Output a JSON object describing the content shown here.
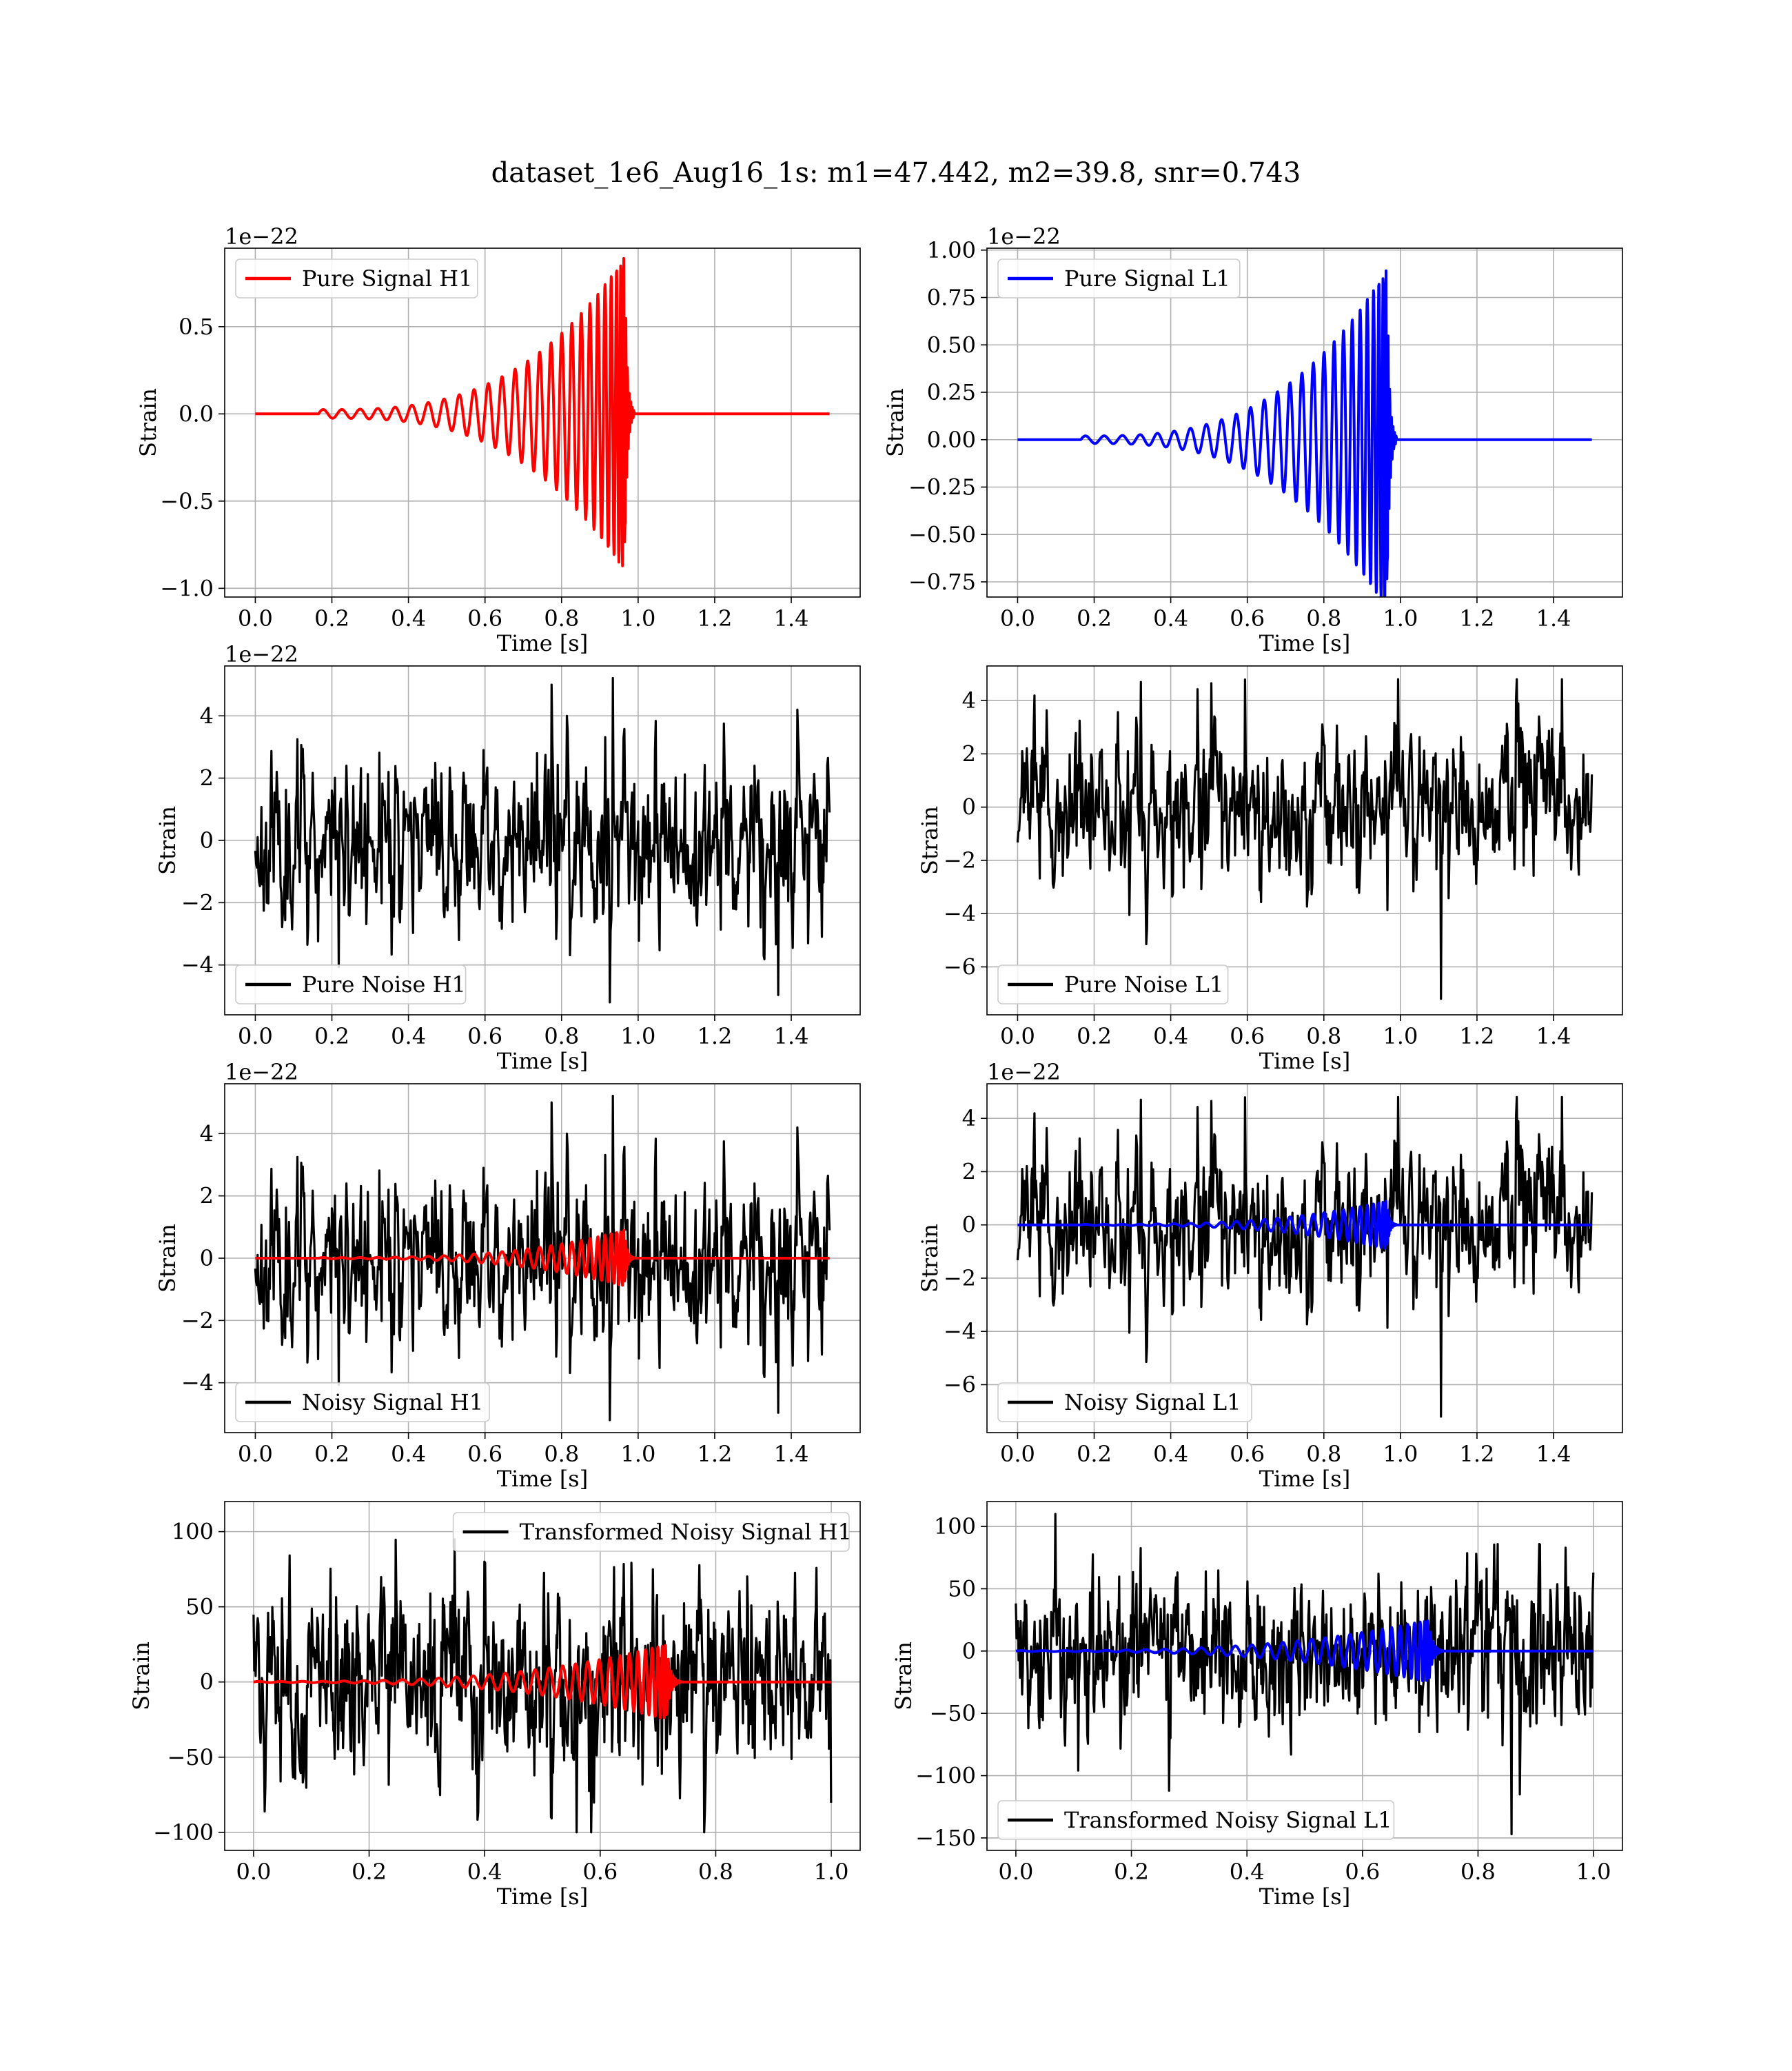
{
  "figure": {
    "suptitle": "dataset_1e6_Aug16_1s: m1=47.442, m2=39.8, snr=0.743"
  },
  "chart_data": [
    {
      "id": "pure-signal-h1",
      "type": "line",
      "xlabel": "Time [s]",
      "ylabel": "Strain",
      "offset_text": "1e−22",
      "xlim": [
        -0.08,
        1.58
      ],
      "ylim": [
        -1.05,
        0.95
      ],
      "xticks": [
        0.0,
        0.2,
        0.4,
        0.6,
        0.8,
        1.0,
        1.2,
        1.4
      ],
      "xtick_labels": [
        "0.0",
        "0.2",
        "0.4",
        "0.6",
        "0.8",
        "1.0",
        "1.2",
        "1.4"
      ],
      "yticks": [
        -1.0,
        -0.5,
        0.0,
        0.5
      ],
      "ytick_labels": [
        "−1.0",
        "−0.5",
        "0.0",
        "0.5"
      ],
      "grid": true,
      "legend": {
        "position": "upper-left",
        "entries": [
          {
            "label": "Pure Signal H1",
            "color": "#ff0000"
          }
        ]
      },
      "series": [
        {
          "name": "Pure Signal H1",
          "color": "#ff0000",
          "kind": "chirp",
          "x_range": [
            0.0,
            1.5
          ],
          "t_start": 0.165,
          "t_merge": 0.965,
          "t_end": 0.99,
          "amp_start": 0.025,
          "amp_peak": 0.9,
          "cycles": 26,
          "dt": 0.0008,
          "seed": 3
        }
      ]
    },
    {
      "id": "pure-signal-l1",
      "type": "line",
      "xlabel": "Time [s]",
      "ylabel": "Strain",
      "offset_text": "1e−22",
      "xlim": [
        -0.08,
        1.58
      ],
      "ylim": [
        -0.83,
        1.01
      ],
      "xticks": [
        0.0,
        0.2,
        0.4,
        0.6,
        0.8,
        1.0,
        1.2,
        1.4
      ],
      "xtick_labels": [
        "0.0",
        "0.2",
        "0.4",
        "0.6",
        "0.8",
        "1.0",
        "1.2",
        "1.4"
      ],
      "yticks": [
        -0.75,
        -0.5,
        -0.25,
        0.0,
        0.25,
        0.5,
        0.75,
        1.0
      ],
      "ytick_labels": [
        "−0.75",
        "−0.50",
        "−0.25",
        "0.00",
        "0.25",
        "0.50",
        "0.75",
        "1.00"
      ],
      "grid": true,
      "legend": {
        "position": "upper-left",
        "entries": [
          {
            "label": "Pure Signal L1",
            "color": "#0000ff"
          }
        ]
      },
      "series": [
        {
          "name": "Pure Signal L1",
          "color": "#0000ff",
          "kind": "chirp",
          "x_range": [
            0.0,
            1.5
          ],
          "t_start": 0.165,
          "t_merge": 0.965,
          "t_end": 0.99,
          "amp_start": 0.02,
          "amp_peak": 0.9,
          "cycles": 26,
          "dt": 0.0008,
          "seed": 5
        }
      ]
    },
    {
      "id": "pure-noise-h1",
      "type": "line",
      "xlabel": "Time [s]",
      "ylabel": "Strain",
      "offset_text": "1e−22",
      "xlim": [
        -0.08,
        1.58
      ],
      "ylim": [
        -5.6,
        5.6
      ],
      "xticks": [
        0.0,
        0.2,
        0.4,
        0.6,
        0.8,
        1.0,
        1.2,
        1.4
      ],
      "xtick_labels": [
        "0.0",
        "0.2",
        "0.4",
        "0.6",
        "0.8",
        "1.0",
        "1.2",
        "1.4"
      ],
      "yticks": [
        -4,
        -2,
        0,
        2,
        4
      ],
      "ytick_labels": [
        "−4",
        "−2",
        "0",
        "2",
        "4"
      ],
      "grid": true,
      "legend": {
        "position": "lower-left",
        "entries": [
          {
            "label": "Pure Noise H1",
            "color": "#000000"
          }
        ]
      },
      "series": [
        {
          "name": "Pure Noise H1",
          "color": "#000000",
          "kind": "noise",
          "x_range": [
            0.0,
            1.5
          ],
          "sigma": 1.2,
          "ymin": -5.2,
          "ymax": 5.3,
          "dt": 0.002,
          "seed": 11
        }
      ]
    },
    {
      "id": "pure-noise-l1",
      "type": "line",
      "xlabel": "Time [s]",
      "ylabel": "Strain",
      "offset_text": "",
      "xlim": [
        -0.08,
        1.58
      ],
      "ylim": [
        -7.8,
        5.3
      ],
      "xticks": [
        0.0,
        0.2,
        0.4,
        0.6,
        0.8,
        1.0,
        1.2,
        1.4
      ],
      "xtick_labels": [
        "0.0",
        "0.2",
        "0.4",
        "0.6",
        "0.8",
        "1.0",
        "1.2",
        "1.4"
      ],
      "yticks": [
        -6,
        -4,
        -2,
        0,
        2,
        4
      ],
      "ytick_labels": [
        "−6",
        "−4",
        "−2",
        "0",
        "2",
        "4"
      ],
      "grid": true,
      "legend": {
        "position": "lower-left",
        "entries": [
          {
            "label": "Pure Noise L1",
            "color": "#000000"
          }
        ]
      },
      "series": [
        {
          "name": "Pure Noise L1",
          "color": "#000000",
          "kind": "noise",
          "x_range": [
            0.0,
            1.5
          ],
          "sigma": 1.2,
          "ymin": -7.2,
          "ymax": 4.8,
          "dt": 0.002,
          "seed": 23,
          "spike": {
            "x": 1.107,
            "y": -7.2
          }
        }
      ]
    },
    {
      "id": "noisy-signal-h1",
      "type": "line",
      "xlabel": "Time [s]",
      "ylabel": "Strain",
      "offset_text": "1e−22",
      "xlim": [
        -0.08,
        1.58
      ],
      "ylim": [
        -5.6,
        5.6
      ],
      "xticks": [
        0.0,
        0.2,
        0.4,
        0.6,
        0.8,
        1.0,
        1.2,
        1.4
      ],
      "xtick_labels": [
        "0.0",
        "0.2",
        "0.4",
        "0.6",
        "0.8",
        "1.0",
        "1.2",
        "1.4"
      ],
      "yticks": [
        -4,
        -2,
        0,
        2,
        4
      ],
      "ytick_labels": [
        "−4",
        "−2",
        "0",
        "2",
        "4"
      ],
      "grid": true,
      "legend": {
        "position": "lower-left",
        "entries": [
          {
            "label": "Noisy Signal H1",
            "color": "#000000"
          }
        ]
      },
      "series": [
        {
          "name": "Noisy Signal H1",
          "color": "#000000",
          "kind": "noise",
          "x_range": [
            0.0,
            1.5
          ],
          "sigma": 1.2,
          "ymin": -5.2,
          "ymax": 5.3,
          "dt": 0.002,
          "seed": 11
        },
        {
          "color": "#ff0000",
          "kind": "chirp",
          "x_range": [
            0.0,
            1.5
          ],
          "t_start": 0.165,
          "t_merge": 0.965,
          "t_end": 0.99,
          "amp_start": 0.02,
          "amp_peak": 0.9,
          "cycles": 26,
          "dt": 0.0008,
          "seed": 3
        }
      ]
    },
    {
      "id": "noisy-signal-l1",
      "type": "line",
      "xlabel": "Time [s]",
      "ylabel": "Strain",
      "offset_text": "1e−22",
      "xlim": [
        -0.08,
        1.58
      ],
      "ylim": [
        -7.8,
        5.3
      ],
      "xticks": [
        0.0,
        0.2,
        0.4,
        0.6,
        0.8,
        1.0,
        1.2,
        1.4
      ],
      "xtick_labels": [
        "0.0",
        "0.2",
        "0.4",
        "0.6",
        "0.8",
        "1.0",
        "1.2",
        "1.4"
      ],
      "yticks": [
        -6,
        -4,
        -2,
        0,
        2,
        4
      ],
      "ytick_labels": [
        "−6",
        "−4",
        "−2",
        "0",
        "2",
        "4"
      ],
      "grid": true,
      "legend": {
        "position": "lower-left",
        "entries": [
          {
            "label": "Noisy Signal L1",
            "color": "#000000"
          }
        ]
      },
      "series": [
        {
          "name": "Noisy Signal L1",
          "color": "#000000",
          "kind": "noise",
          "x_range": [
            0.0,
            1.5
          ],
          "sigma": 1.2,
          "ymin": -7.2,
          "ymax": 4.8,
          "dt": 0.002,
          "seed": 23,
          "spike": {
            "x": 1.107,
            "y": -7.2
          }
        },
        {
          "color": "#0000ff",
          "kind": "chirp",
          "x_range": [
            0.0,
            1.5
          ],
          "t_start": 0.165,
          "t_merge": 0.965,
          "t_end": 0.99,
          "amp_start": 0.02,
          "amp_peak": 0.9,
          "cycles": 26,
          "dt": 0.0008,
          "seed": 5
        }
      ]
    },
    {
      "id": "transformed-noisy-signal-h1",
      "type": "line",
      "xlabel": "Time [s]",
      "ylabel": "Strain",
      "offset_text": "",
      "xlim": [
        -0.05,
        1.05
      ],
      "ylim": [
        -112,
        120
      ],
      "xticks": [
        0.0,
        0.2,
        0.4,
        0.6,
        0.8,
        1.0
      ],
      "xtick_labels": [
        "0.0",
        "0.2",
        "0.4",
        "0.6",
        "0.8",
        "1.0"
      ],
      "yticks": [
        -100,
        -50,
        0,
        50,
        100
      ],
      "ytick_labels": [
        "−100",
        "−50",
        "0",
        "50",
        "100"
      ],
      "grid": true,
      "legend": {
        "position": "upper-right",
        "entries": [
          {
            "label": "Transformed Noisy Signal H1",
            "color": "#000000"
          }
        ]
      },
      "series": [
        {
          "name": "Transformed Noisy Signal H1",
          "color": "#000000",
          "kind": "noise",
          "x_range": [
            0.0,
            1.0
          ],
          "sigma": 27,
          "ymin": -100,
          "ymax": 110,
          "dt": 0.0012,
          "seed": 41
        },
        {
          "color": "#ff0000",
          "kind": "chirp",
          "x_range": [
            0.0,
            1.0
          ],
          "t_start": 0.0,
          "t_merge": 0.715,
          "t_end": 0.74,
          "amp_start": 0.4,
          "amp_peak": 25,
          "cycles": 30,
          "dt": 0.0005,
          "seed": 7
        }
      ]
    },
    {
      "id": "transformed-noisy-signal-l1",
      "type": "line",
      "xlabel": "Time [s]",
      "ylabel": "Strain",
      "offset_text": "",
      "xlim": [
        -0.05,
        1.05
      ],
      "ylim": [
        -160,
        120
      ],
      "xticks": [
        0.0,
        0.2,
        0.4,
        0.6,
        0.8,
        1.0
      ],
      "xtick_labels": [
        "0.0",
        "0.2",
        "0.4",
        "0.6",
        "0.8",
        "1.0"
      ],
      "yticks": [
        -150,
        -100,
        -50,
        0,
        50,
        100
      ],
      "ytick_labels": [
        "−150",
        "−100",
        "−50",
        "0",
        "50",
        "100"
      ],
      "grid": true,
      "legend": {
        "position": "lower-left",
        "entries": [
          {
            "label": "Transformed Noisy Signal L1",
            "color": "#000000"
          }
        ]
      },
      "series": [
        {
          "name": "Transformed Noisy Signal L1",
          "color": "#000000",
          "kind": "noise",
          "x_range": [
            0.0,
            1.0
          ],
          "sigma": 27,
          "ymin": -147,
          "ymax": 110,
          "dt": 0.0012,
          "seed": 53,
          "spike": {
            "x": 0.858,
            "y": -147
          }
        },
        {
          "color": "#0000ff",
          "kind": "chirp",
          "x_range": [
            0.0,
            1.0
          ],
          "t_start": 0.0,
          "t_merge": 0.715,
          "t_end": 0.74,
          "amp_start": 0.4,
          "amp_peak": 25,
          "cycles": 30,
          "dt": 0.0005,
          "seed": 9
        }
      ]
    }
  ]
}
